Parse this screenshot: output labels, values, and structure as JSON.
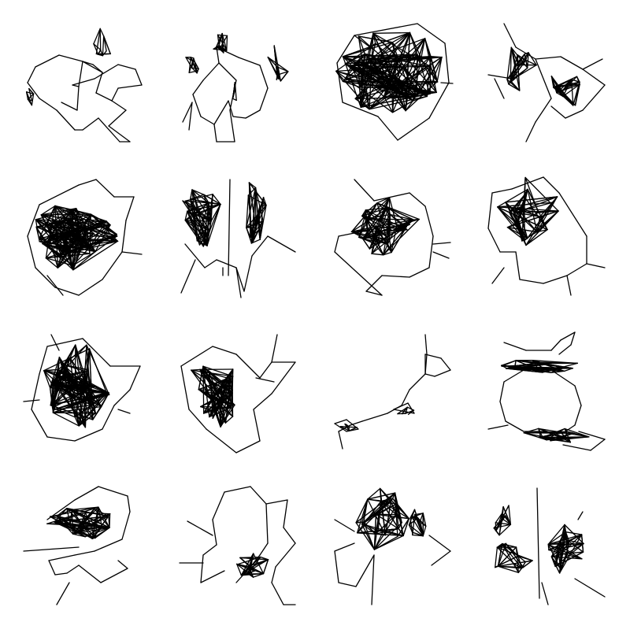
{
  "figure": {
    "type": "grid of network graph drawings",
    "rows": 4,
    "columns": 4,
    "background_color": "#ffffff",
    "edge_color": "#000000",
    "labels_shown": false
  },
  "graphs": [
    {
      "id": "graph-1",
      "style": "loose ring with small dense knot at top"
    },
    {
      "id": "graph-2",
      "style": "ring of small dense clusters"
    },
    {
      "id": "graph-3",
      "style": "single very dense core"
    },
    {
      "id": "graph-4",
      "style": "two dense clusters with spokes"
    },
    {
      "id": "graph-5",
      "style": "very dense core with outer shell"
    },
    {
      "id": "graph-6",
      "style": "tall dense clusters with long spokes"
    },
    {
      "id": "graph-7",
      "style": "medium density mesh"
    },
    {
      "id": "graph-8",
      "style": "dense cluster with loose tail ring"
    },
    {
      "id": "graph-9",
      "style": "dense oval core"
    },
    {
      "id": "graph-10",
      "style": "dense core with fan of spokes"
    },
    {
      "id": "graph-11",
      "style": "sparse chain of small triangles"
    },
    {
      "id": "graph-12",
      "style": "large ring with dense bands at top and bottom"
    },
    {
      "id": "graph-13",
      "style": "dense band with long spokes"
    },
    {
      "id": "graph-14",
      "style": "ring with dense knot at bottom"
    },
    {
      "id": "graph-15",
      "style": "two dense clusters joined"
    },
    {
      "id": "graph-16",
      "style": "two clusters with long vertical spoke"
    }
  ]
}
